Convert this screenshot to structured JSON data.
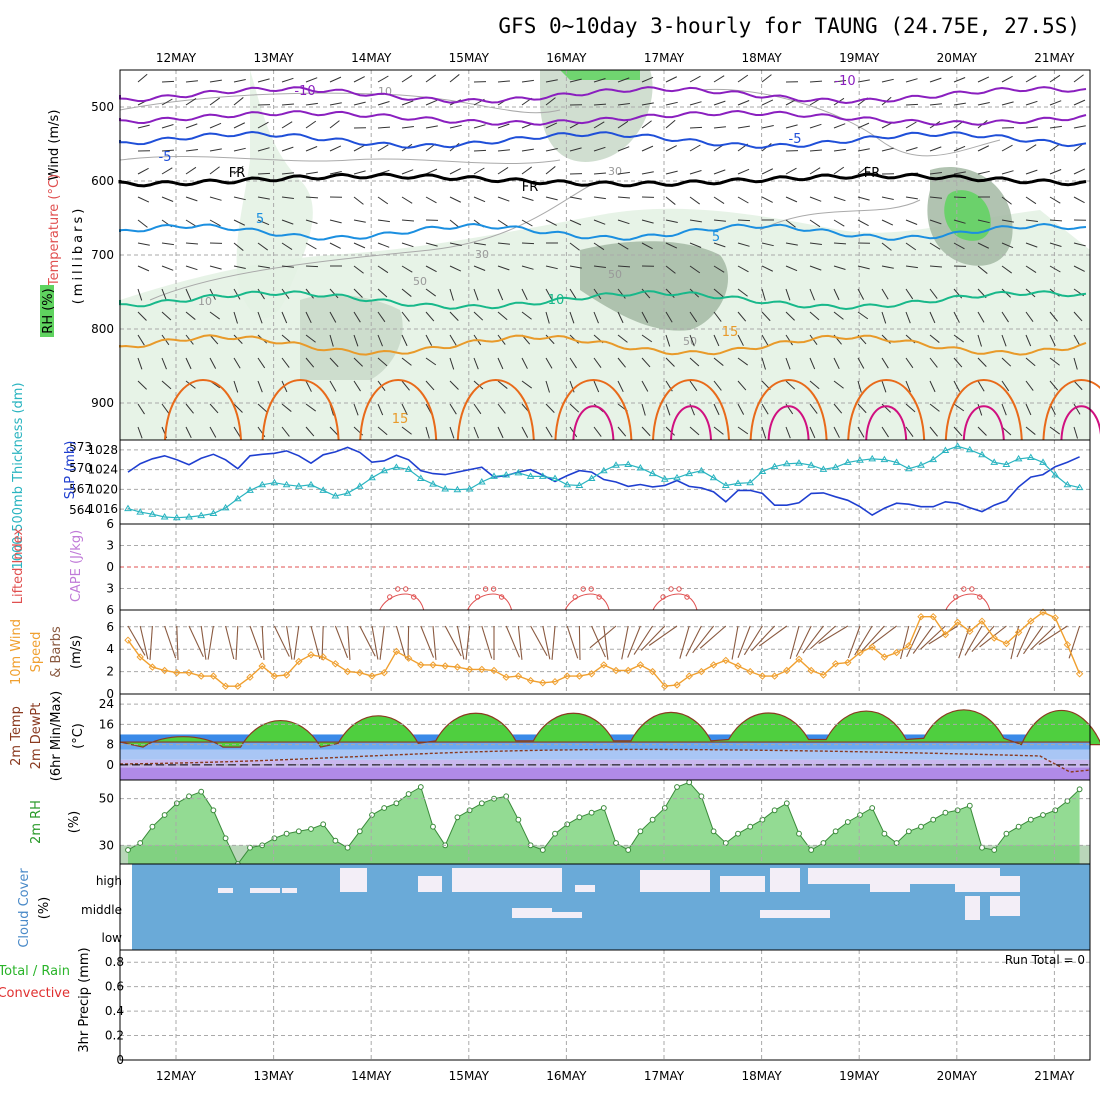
{
  "title": "GFS 0~10day 3-hourly for TAUNG (24.75E, 27.5S)",
  "date_labels": [
    "12MAY",
    "13MAY",
    "14MAY",
    "15MAY",
    "16MAY",
    "17MAY",
    "18MAY",
    "19MAY",
    "20MAY",
    "21MAY"
  ],
  "colors": {
    "rh_green_light": "#e3f1e3",
    "rh_green_mid": "#c8d8c8",
    "rh_green_dark": "#a3b8a3",
    "rh_bright_green": "#5fd35f",
    "iso_minus10": "#8a1fbf",
    "iso_minus5": "#1f4fd8",
    "iso_fr": "#000000",
    "iso_5": "#1b8fe0",
    "iso_10": "#18b88a",
    "iso_15": "#e89a2a",
    "iso_20": "#e86a1a",
    "iso_25": "#d01080",
    "slp": "#1f3fd0",
    "thickness": "#2ab4c0",
    "li_line": "#e05050",
    "wind_speed": "#f0a030",
    "barb": "#8a5a40",
    "rh2m_fill": "#6fcf6f",
    "cloud": "#6aaad8",
    "cloud_gap": "#f3eef7"
  },
  "panels": {
    "upper": {
      "ylabel_wind": "Wind (m/s)",
      "ylabel_temp": "Temperature (°C)",
      "ylabel_rh": "RH (%)",
      "ylabel_mb": "(millibars)",
      "contour_labels": {
        "minus10": "-10",
        "minus5": "-5",
        "fr": "FR",
        "five": "5",
        "ten": "10",
        "fifteen": "15",
        "rh10": "10",
        "rh30": "30",
        "rh50": "50"
      }
    },
    "slp": {
      "ylabel_thick": "1000-500mb Thickness (dm)",
      "ylabel_slp": "SLP (mb)"
    },
    "cape": {
      "ylabel_li": "Lifted Index",
      "ylabel_cape": "CAPE (J/kg)"
    },
    "wind10": {
      "ylabel_a": "10m Wind",
      "ylabel_b": "Speed",
      "ylabel_c": "& Barbs",
      "ylabel_unit": "(m/s)"
    },
    "temp2m": {
      "ylabel_a": "2m Temp",
      "ylabel_b": "2m DewPt",
      "ylabel_c": "(6hr Min/Max)",
      "ylabel_unit": "(°C)"
    },
    "rh2m": {
      "ylabel": "2m RH",
      "ylabel_unit": "(%)"
    },
    "cloud": {
      "ylabel": "Cloud Cover",
      "ylabel_unit": "(%)"
    },
    "precip": {
      "ylabel_a": "Total / Rain",
      "ylabel_b": "Convective",
      "ylabel_c": "3hr Precip (mm)",
      "run_total": "Run Total = 0"
    }
  },
  "chart_data": [
    {
      "type": "heatmap",
      "name_in_chart": "upper-air cross section",
      "y_ticks_mb": [
        500,
        600,
        700,
        800,
        900
      ],
      "ylim_mb": [
        450,
        950
      ],
      "isotherms_C": [
        -10,
        -5,
        0,
        5,
        10,
        15,
        20,
        25
      ],
      "rh_contours_pct": [
        10,
        30,
        50,
        70,
        90
      ]
    },
    {
      "type": "line",
      "name_in_chart": "SLP and thickness",
      "x_days": [
        0,
        0.125,
        0.25,
        0.375,
        0.5,
        0.625,
        0.75,
        0.875,
        1,
        1.125,
        1.25,
        1.375,
        1.5,
        1.625,
        1.75,
        1.875,
        2,
        2.125,
        2.25,
        2.375,
        2.5,
        2.625,
        2.75,
        2.875,
        3,
        3.125,
        3.25,
        3.375,
        3.5,
        3.625,
        3.75,
        3.875,
        4,
        4.125,
        4.25,
        4.375,
        4.5,
        4.625,
        4.75,
        4.875,
        5,
        5.125,
        5.25,
        5.375,
        5.5,
        5.625,
        5.75,
        5.875,
        6,
        6.125,
        6.25,
        6.375,
        6.5,
        6.625,
        6.75,
        6.875,
        7,
        7.125,
        7.25,
        7.375,
        7.5,
        7.625,
        7.75,
        7.875,
        8,
        8.125,
        8.25,
        8.375,
        8.5,
        8.625,
        8.75,
        8.875,
        9,
        9.125,
        9.25,
        9.375,
        9.5,
        9.625,
        9.75
      ],
      "slp_ticks": [
        1016,
        1020,
        1024,
        1028
      ],
      "thickness_ticks": [
        564,
        567,
        570,
        573
      ],
      "ylim_slp": [
        1013,
        1030
      ],
      "ylim_thick": [
        562,
        574
      ],
      "series": [
        {
          "name": "SLP (mb)",
          "values": [
            1023.5,
            1025.2,
            1026.2,
            1026.8,
            1026,
            1025,
            1026.3,
            1027.1,
            1026,
            1024.2,
            1026.8,
            1027.1,
            1027.3,
            1027.8,
            1026.8,
            1025.3,
            1027,
            1027.6,
            1028.5,
            1027.5,
            1025.5,
            1025.8,
            1026.9,
            1026,
            1023.8,
            1023.2,
            1023,
            1023.5,
            1024,
            1024.5,
            1022.5,
            1022.8,
            1023.5,
            1024,
            1022.9,
            1021.6,
            1022.8,
            1023.8,
            1023.5,
            1022,
            1021.5,
            1020.6,
            1021,
            1020.5,
            1020.8,
            1021.8,
            1020.6,
            1020.3,
            1019.5,
            1017.5,
            1019.8,
            1019.8,
            1019.2,
            1016.8,
            1016.8,
            1017.3,
            1019.2,
            1019.3,
            1018.5,
            1017.8,
            1016.5,
            1014.8,
            1016.2,
            1017.2,
            1017,
            1016.5,
            1016.5,
            1017.5,
            1017.2,
            1016.3,
            1015.5,
            1016.8,
            1017.7,
            1020.5,
            1022.5,
            1023,
            1024.6,
            1025.5,
            1026.6
          ]
        },
        {
          "name": "1000-500mb Thickness (dm)",
          "values": [
            564.2,
            563.7,
            563.4,
            563,
            562.9,
            563,
            563.2,
            563.5,
            564.3,
            565.6,
            566.8,
            567.6,
            567.9,
            567.6,
            567.4,
            567.6,
            566.8,
            566,
            566.4,
            567.4,
            568.6,
            569.6,
            570.1,
            569.8,
            568.5,
            567.7,
            567,
            566.9,
            567,
            568,
            568.8,
            569,
            569.3,
            568.8,
            568.8,
            568.5,
            567.6,
            567.5,
            568.5,
            569.6,
            570.4,
            570.5,
            570,
            569.2,
            568.4,
            568.6,
            569.2,
            569.6,
            568.6,
            567.5,
            567.8,
            567.9,
            569.5,
            570.2,
            570.6,
            570.7,
            570.4,
            569.8,
            570.1,
            570.8,
            571.1,
            571.3,
            571.2,
            570.8,
            569.9,
            570.4,
            571.2,
            572.5,
            573.1,
            572.6,
            571.9,
            570.8,
            570.5,
            571.3,
            571.5,
            570.8,
            569,
            567.6,
            567.2
          ]
        }
      ]
    },
    {
      "type": "line",
      "name_in_chart": "Lifted index and CAPE",
      "li_ticks": [
        6,
        3,
        0,
        -3,
        -6
      ],
      "ylim_li": [
        6,
        -6
      ],
      "lifted_index_bumps_days": [
        2.6,
        3.5,
        4.5,
        5.4,
        8.4
      ]
    },
    {
      "type": "line",
      "name_in_chart": "10m wind speed",
      "y_ticks": [
        0,
        2,
        4,
        6
      ],
      "ylim": [
        0,
        7.5
      ],
      "series": [
        {
          "name": "10m Wind Speed",
          "values": [
            4.8,
            3.3,
            2.4,
            2.1,
            1.9,
            1.9,
            1.6,
            1.6,
            0.7,
            0.7,
            1.5,
            2.5,
            1.6,
            1.7,
            2.9,
            3.5,
            3.3,
            2.7,
            2.0,
            1.9,
            1.6,
            1.9,
            3.8,
            3.2,
            2.6,
            2.6,
            2.5,
            2.4,
            2.2,
            2.2,
            2.1,
            1.5,
            1.6,
            1.2,
            1.0,
            1.1,
            1.6,
            1.6,
            1.8,
            2.6,
            2.1,
            2.1,
            2.6,
            2.0,
            0.7,
            0.8,
            1.6,
            2.0,
            2.6,
            3.0,
            2.5,
            2.0,
            1.6,
            1.6,
            2.1,
            3.1,
            2.1,
            1.7,
            2.7,
            2.8,
            3.7,
            4.2,
            3.3,
            3.7,
            4.3,
            6.9,
            6.9,
            5.3,
            6.4,
            5.6,
            6.5,
            5.0,
            4.5,
            5.5,
            6.5,
            7.3,
            6.8,
            4.4,
            1.8
          ]
        }
      ]
    },
    {
      "type": "area",
      "name_in_chart": "2m temperature",
      "y_ticks": [
        0,
        8,
        16,
        24
      ],
      "ylim": [
        -6,
        28
      ],
      "daily_max_C": [
        12.5,
        21,
        23,
        24,
        24,
        24.5,
        24,
        25,
        25.5,
        26
      ],
      "daily_min_C": [
        7,
        7,
        8.5,
        9.5,
        9.5,
        9.5,
        10,
        10,
        10.5,
        8
      ]
    },
    {
      "type": "area",
      "name_in_chart": "2m RH",
      "y_ticks": [
        30,
        50
      ],
      "ylim": [
        22,
        58
      ],
      "series": [
        {
          "name": "2m RH",
          "values": [
            28,
            31,
            38,
            43,
            48,
            51,
            53,
            45,
            33,
            22,
            29,
            30,
            33,
            35,
            36,
            37,
            39,
            32,
            29,
            36,
            43,
            46,
            48,
            52,
            55,
            38,
            30,
            42,
            45,
            48,
            50,
            51,
            41,
            30,
            28,
            35,
            39,
            42,
            44,
            46,
            31,
            28,
            36,
            41,
            46,
            55,
            57,
            51,
            36,
            31,
            35,
            38,
            41,
            45,
            48,
            35,
            28,
            31,
            36,
            40,
            43,
            46,
            35,
            31,
            36,
            38,
            41,
            44,
            45,
            47,
            29,
            28,
            35,
            38,
            41,
            43,
            45,
            49,
            54
          ]
        }
      ]
    },
    {
      "type": "heatmap",
      "name_in_chart": "cloud cover",
      "levels": [
        "high",
        "middle",
        "low"
      ]
    },
    {
      "type": "line",
      "name_in_chart": "3hr precip",
      "y_ticks": [
        0,
        0.2,
        0.4,
        0.6,
        0.8
      ],
      "ylim": [
        0,
        0.9
      ],
      "run_total_mm": 0
    }
  ]
}
